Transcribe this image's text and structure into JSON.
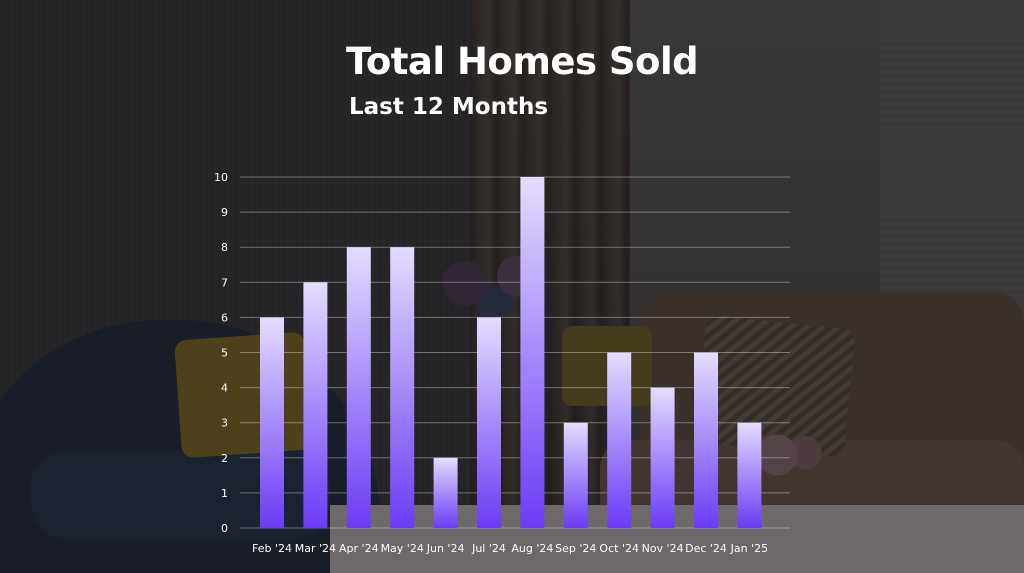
{
  "chart_data": {
    "type": "bar",
    "title": "Total Homes Sold",
    "subtitle": "Last 12 Months",
    "categories": [
      "Feb '24",
      "Mar '24",
      "Apr '24",
      "May '24",
      "Jun '24",
      "Jul '24",
      "Aug '24",
      "Sep '24",
      "Oct '24",
      "Nov '24",
      "Dec '24",
      "Jan '25"
    ],
    "values": [
      6,
      7,
      8,
      8,
      2,
      6,
      10,
      3,
      5,
      4,
      5,
      3
    ],
    "ylim": [
      0,
      10
    ],
    "yticks": [
      0,
      1,
      2,
      3,
      4,
      5,
      6,
      7,
      8,
      9,
      10
    ],
    "grid": true,
    "bar_gradient": [
      "#6a3bf5",
      "#e4dcff"
    ]
  }
}
